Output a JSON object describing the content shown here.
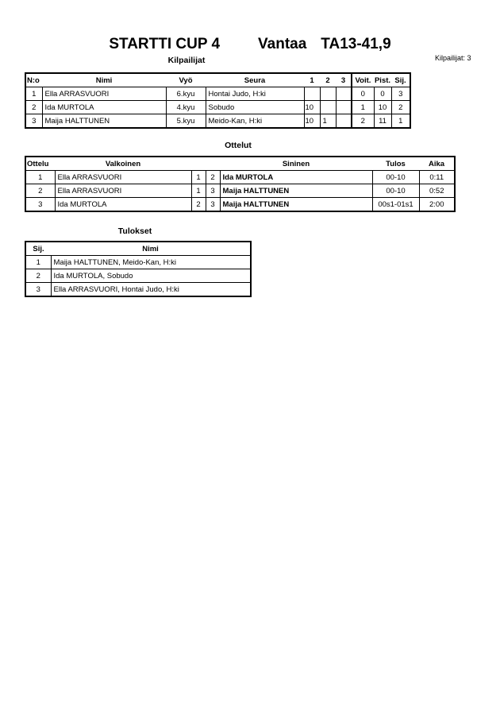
{
  "header": {
    "event": "STARTTI CUP 4",
    "place": "Vantaa",
    "category": "TA13-41,9",
    "participants_label": "Kilpailijat: 3"
  },
  "competitors": {
    "title": "Kilpailijat",
    "columns": [
      "N:o",
      "Nimi",
      "Vyö",
      "Seura",
      "1",
      "2",
      "3",
      "Voit.",
      "Pist.",
      "Sij."
    ],
    "rows": [
      {
        "no": "1",
        "name": "Ella ARRASVUORI",
        "belt": "6.kyu",
        "club": "Hontai Judo, H:ki",
        "r1": "",
        "r2": "",
        "r3": "",
        "wins": "0",
        "points": "0",
        "place": "3"
      },
      {
        "no": "2",
        "name": "Ida MURTOLA",
        "belt": "4.kyu",
        "club": "Sobudo",
        "r1": "10",
        "r2": "",
        "r3": "",
        "wins": "1",
        "points": "10",
        "place": "2"
      },
      {
        "no": "3",
        "name": "Maija HALTTUNEN",
        "belt": "5.kyu",
        "club": "Meido-Kan, H:ki",
        "r1": "10",
        "r2": "1",
        "r3": "",
        "wins": "2",
        "points": "11",
        "place": "1"
      }
    ]
  },
  "matches": {
    "title": "Ottelut",
    "columns": [
      "Ottelu",
      "Valkoinen",
      "Sininen",
      "Tulos",
      "Aika"
    ],
    "rows": [
      {
        "match": "1",
        "white": "Ella ARRASVUORI",
        "wno": "1",
        "bno": "2",
        "blue": "Ida MURTOLA",
        "result": "00-10",
        "time": "0:11"
      },
      {
        "match": "2",
        "white": "Ella ARRASVUORI",
        "wno": "1",
        "bno": "3",
        "blue": "Maija HALTTUNEN",
        "result": "00-10",
        "time": "0:52"
      },
      {
        "match": "3",
        "white": "Ida MURTOLA",
        "wno": "2",
        "bno": "3",
        "blue": "Maija HALTTUNEN",
        "result": "00s1-01s1",
        "time": "2:00"
      }
    ]
  },
  "results": {
    "title": "Tulokset",
    "columns": [
      "Sij.",
      "Nimi"
    ],
    "rows": [
      {
        "place": "1",
        "name": "Maija HALTTUNEN, Meido-Kan, H:ki"
      },
      {
        "place": "2",
        "name": "Ida MURTOLA, Sobudo"
      },
      {
        "place": "3",
        "name": "Ella ARRASVUORI, Hontai Judo, H:ki"
      }
    ]
  }
}
